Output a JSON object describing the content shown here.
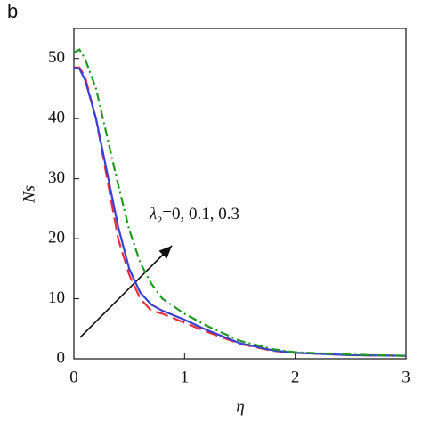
{
  "panel_label": "b",
  "chart_data": {
    "type": "line",
    "x_label": "η",
    "y_label": "Ns",
    "annotation": {
      "symbol": "λ",
      "subscript": "2",
      "text": "=0, 0.1, 0.3"
    },
    "x": [
      0,
      0.05,
      0.1,
      0.2,
      0.3,
      0.4,
      0.5,
      0.6,
      0.7,
      0.8,
      1.0,
      1.2,
      1.5,
      1.8,
      2,
      2.5,
      3
    ],
    "series": [
      {
        "color": "#e8303a",
        "dash": "14 6",
        "values": [
          48.5,
          48.5,
          47,
          40,
          30,
          20,
          14,
          10,
          8,
          7.5,
          6,
          4.5,
          2.5,
          1.3,
          1,
          0.6,
          0.5
        ]
      },
      {
        "color": "#3a3fd6",
        "dash": "none",
        "values": [
          48.5,
          48.3,
          46.5,
          40,
          31,
          22,
          15,
          11,
          9,
          8,
          6.5,
          4.8,
          2.6,
          1.4,
          1,
          0.6,
          0.5
        ]
      },
      {
        "color": "#1f9a1f",
        "dash": "10 4 2 4",
        "values": [
          51,
          51.5,
          50,
          45,
          37,
          29,
          21.5,
          16,
          12.5,
          10,
          7.5,
          5.5,
          3,
          1.6,
          1.1,
          0.7,
          0.5
        ]
      }
    ],
    "xlim": [
      0,
      3
    ],
    "ylim": [
      0,
      55
    ],
    "xticks": [
      0,
      1,
      2,
      3
    ],
    "yticks": [
      0,
      10,
      20,
      30,
      40,
      50
    ],
    "grid": false
  }
}
